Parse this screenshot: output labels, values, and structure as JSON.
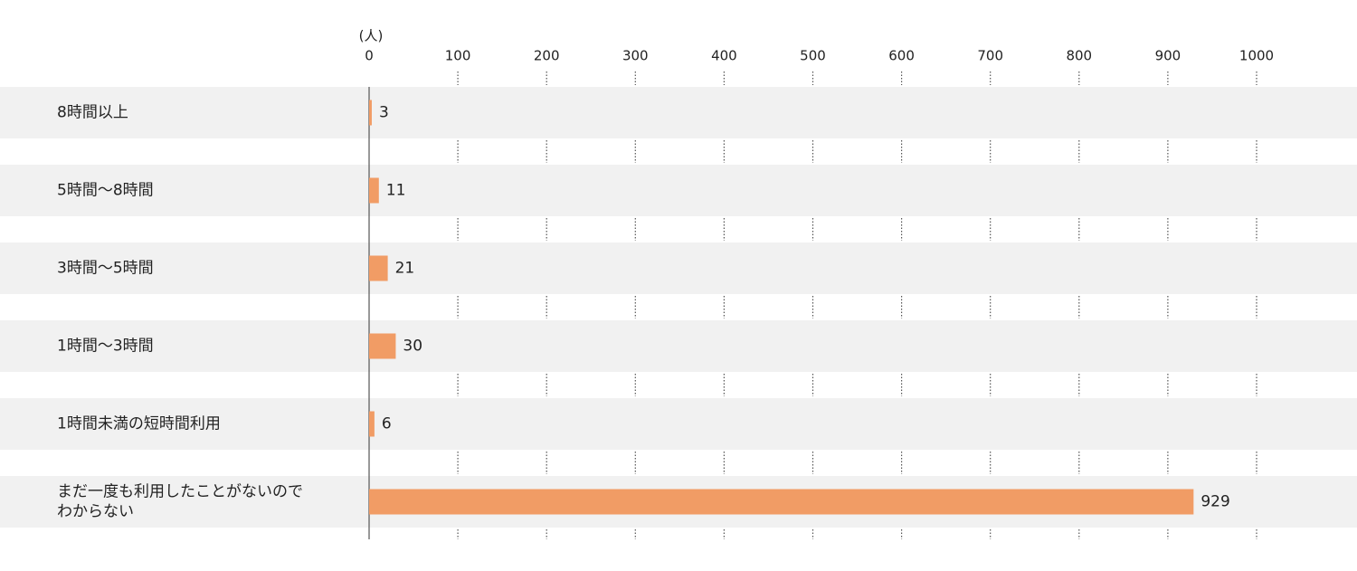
{
  "chart_data": {
    "type": "barh",
    "unit_label": "(人)",
    "categories": [
      "8時間以上",
      "5時間〜8時間",
      "3時間〜5時間",
      "1時間〜3時間",
      "1時間未満の短時間利用",
      [
        "まだ一度も利用したことがないので",
        "わからない"
      ]
    ],
    "values": [
      3,
      11,
      21,
      30,
      6,
      929
    ],
    "color": "#f19c65",
    "xlim": [
      0,
      1000
    ],
    "xticks": [
      0,
      100,
      200,
      300,
      400,
      500,
      600,
      700,
      800,
      900,
      1000
    ]
  }
}
